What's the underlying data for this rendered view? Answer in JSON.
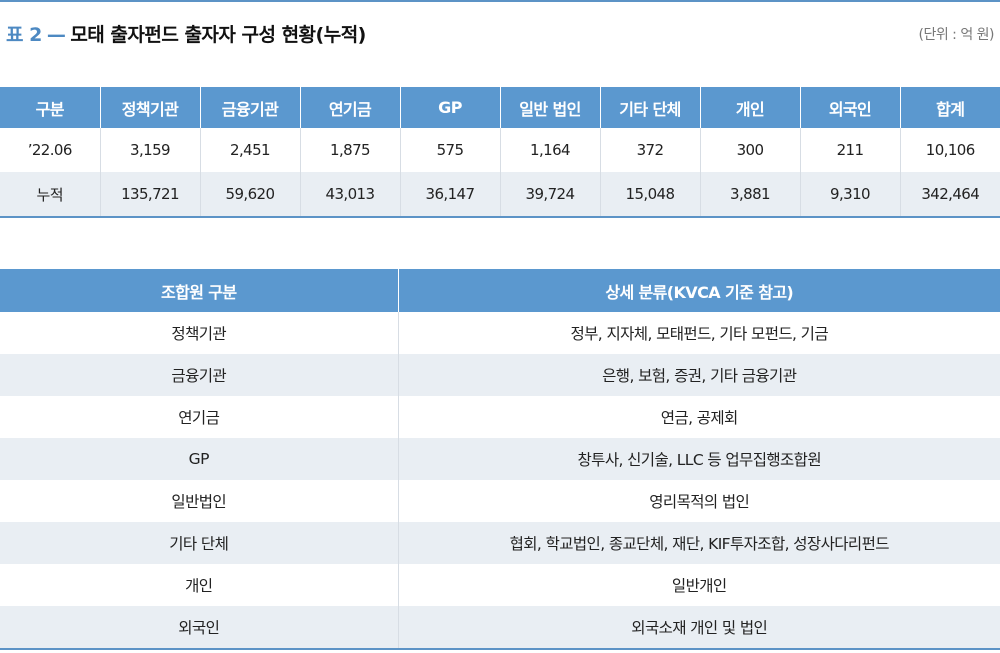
{
  "title": {
    "label": "표 2",
    "dash": "—",
    "text": "모태 출자펀드 출자자 구성 현황(누적)",
    "unit": "(단위 : 억 원)"
  },
  "table1": {
    "headers": [
      "구분",
      "정책기관",
      "금융기관",
      "연기금",
      "GP",
      "일반 법인",
      "기타 단체",
      "개인",
      "외국인",
      "합계"
    ],
    "rows": [
      [
        "’22.06",
        "3,159",
        "2,451",
        "1,875",
        "575",
        "1,164",
        "372",
        "300",
        "211",
        "10,106"
      ],
      [
        "누적",
        "135,721",
        "59,620",
        "43,013",
        "36,147",
        "39,724",
        "15,048",
        "3,881",
        "9,310",
        "342,464"
      ]
    ]
  },
  "table2": {
    "headers": [
      "조합원 구분",
      "상세 분류(KVCA 기준 참고)"
    ],
    "rows": [
      [
        "정책기관",
        "정부, 지자체, 모태펀드, 기타 모펀드, 기금"
      ],
      [
        "금융기관",
        "은행, 보험, 증권, 기타 금융기관"
      ],
      [
        "연기금",
        "연금, 공제회"
      ],
      [
        "GP",
        "창투사, 신기술, LLC 등 업무집행조합원"
      ],
      [
        "일반법인",
        "영리목적의 법인"
      ],
      [
        "기타 단체",
        "협회, 학교법인, 종교단체, 재단, KIF투자조합, 성장사다리펀드"
      ],
      [
        "개인",
        "일반개인"
      ],
      [
        "외국인",
        "외국소재 개인 및 법인"
      ]
    ]
  },
  "colors": {
    "header_bg": "#5b98cf",
    "accent": "#4d89c2",
    "row_shade": "#e9eef3",
    "rule": "#5c93c6"
  }
}
